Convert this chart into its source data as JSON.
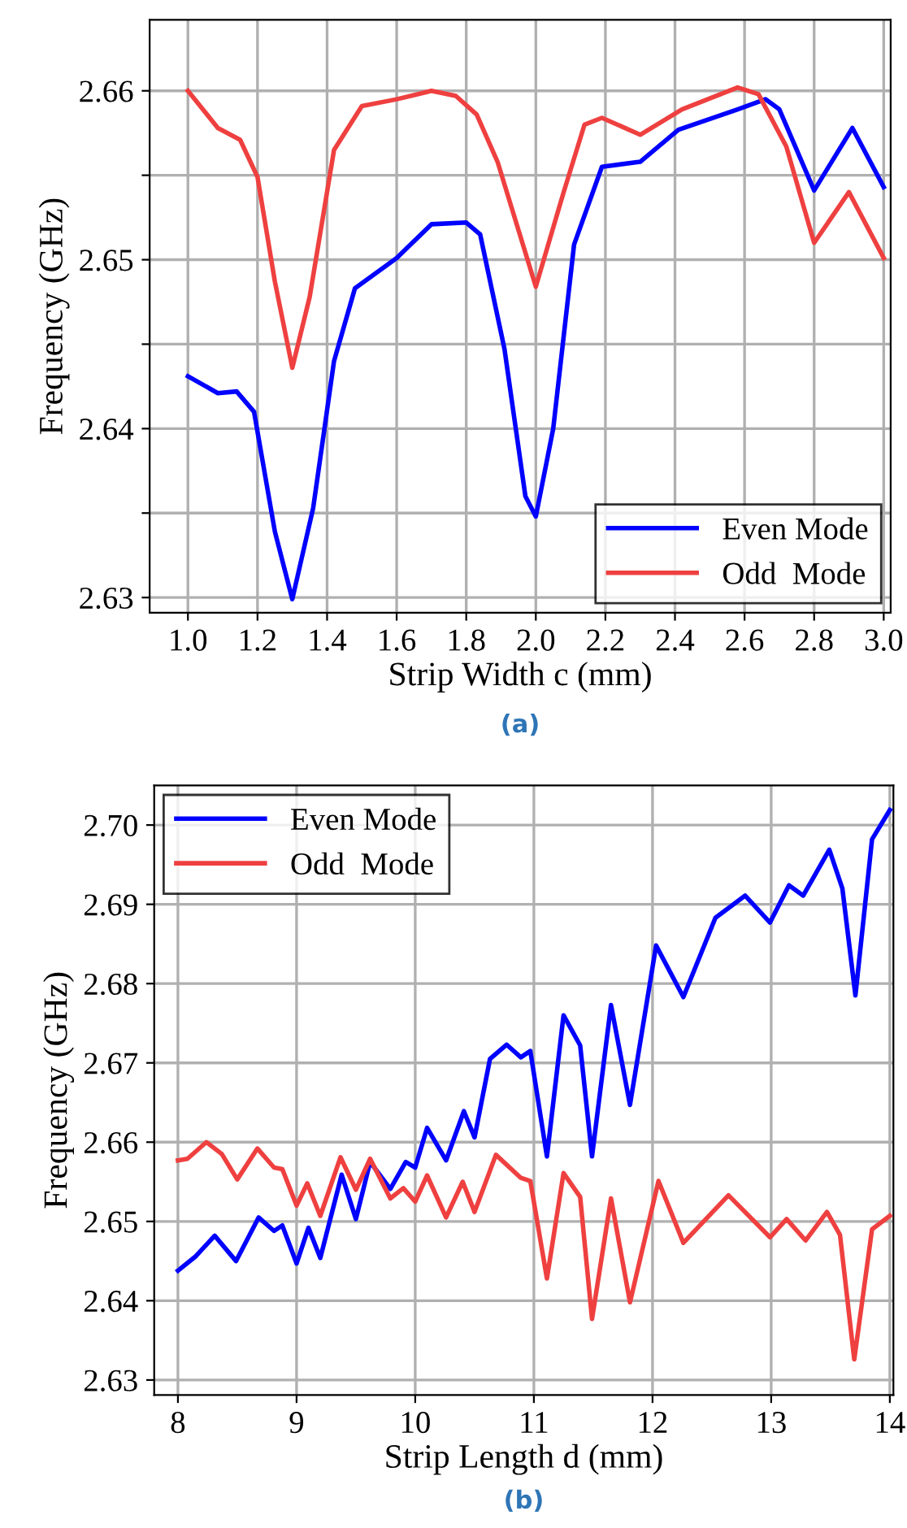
{
  "chart_data": [
    {
      "type": "line",
      "xlabel": "Strip Width c (mm)",
      "ylabel": "Frequency (GHz)",
      "annotations": [
        "(a)"
      ],
      "xlim": [
        0.89,
        3.02
      ],
      "ylim": [
        2.6291,
        2.6642
      ],
      "xticks": [
        {
          "value": 1.0,
          "label": "1.0"
        },
        1.2,
        1.4,
        1.6,
        1.8,
        {
          "value": 2.0,
          "label": "2.0"
        },
        2.2,
        2.4,
        2.6,
        2.8,
        {
          "value": 3.0,
          "label": "3.0"
        }
      ],
      "yticks": [
        2.63,
        {
          "value": 2.635,
          "label": null
        },
        2.64,
        {
          "value": 2.645,
          "label": null
        },
        2.65,
        {
          "value": 2.655,
          "label": null
        },
        2.66
      ],
      "grid": true,
      "legend": "bottom right",
      "line_style": "solid",
      "marker": "none",
      "series": [
        {
          "name": "Even Mode",
          "color": "#0000ff",
          "x": [
            1.0,
            1.086,
            1.14,
            1.19,
            1.25,
            1.3,
            1.36,
            1.42,
            1.48,
            1.6,
            1.7,
            1.8,
            1.84,
            1.91,
            1.97,
            2.0,
            2.05,
            2.11,
            2.19,
            2.3,
            2.41,
            2.58,
            2.66,
            2.7,
            2.8,
            2.91,
            3.0
          ],
          "values": [
            2.6431,
            2.6421,
            2.6422,
            2.641,
            2.6339,
            2.6299,
            2.6353,
            2.644,
            2.6483,
            2.6501,
            2.6521,
            2.6522,
            2.6515,
            2.6447,
            2.636,
            2.6348,
            2.64,
            2.6509,
            2.6555,
            2.6558,
            2.6577,
            2.6589,
            2.6595,
            2.6589,
            2.6541,
            2.6578,
            2.6543
          ]
        },
        {
          "name": "Odd  Mode",
          "color": "#ef4040",
          "x": [
            1.0,
            1.086,
            1.15,
            1.2,
            1.25,
            1.3,
            1.35,
            1.42,
            1.5,
            1.6,
            1.7,
            1.77,
            1.83,
            1.89,
            2.0,
            2.08,
            2.14,
            2.19,
            2.3,
            2.42,
            2.58,
            2.64,
            2.72,
            2.8,
            2.9,
            3.0
          ],
          "values": [
            2.66,
            2.6578,
            2.6571,
            2.6549,
            2.6487,
            2.6436,
            2.6478,
            2.6565,
            2.6591,
            2.6595,
            2.66,
            2.6597,
            2.6586,
            2.6558,
            2.6484,
            2.654,
            2.658,
            2.6584,
            2.6574,
            2.6589,
            2.6602,
            2.6598,
            2.6567,
            2.651,
            2.654,
            2.6501
          ]
        }
      ]
    },
    {
      "type": "line",
      "xlabel": "Strip Length d (mm)",
      "ylabel": "Frequency (GHz)",
      "annotations": [
        "(b)"
      ],
      "xlim": [
        7.8,
        14.03
      ],
      "ylim": [
        2.6281,
        2.705
      ],
      "xticks": [
        8,
        9,
        10,
        11,
        12,
        13,
        14
      ],
      "yticks": [
        {
          "value": 2.63,
          "label": "2.63"
        },
        {
          "value": 2.64,
          "label": "2.64"
        },
        {
          "value": 2.65,
          "label": "2.65"
        },
        {
          "value": 2.66,
          "label": "2.66"
        },
        {
          "value": 2.67,
          "label": "2.67"
        },
        {
          "value": 2.68,
          "label": "2.68"
        },
        {
          "value": 2.69,
          "label": "2.69"
        },
        {
          "value": 2.7,
          "label": "2.70"
        }
      ],
      "grid": true,
      "legend": "top left",
      "line_style": "solid",
      "marker": "none",
      "series": [
        {
          "name": "Even Mode",
          "color": "#0000ff",
          "x": [
            8.0,
            8.15,
            8.31,
            8.49,
            8.68,
            8.81,
            8.88,
            9.0,
            9.1,
            9.2,
            9.38,
            9.5,
            9.62,
            9.79,
            9.92,
            10.0,
            10.1,
            10.26,
            10.41,
            10.5,
            10.63,
            10.77,
            10.89,
            10.97,
            11.11,
            11.25,
            11.39,
            11.49,
            11.65,
            11.81,
            12.03,
            12.26,
            12.53,
            12.78,
            12.99,
            13.15,
            13.27,
            13.49,
            13.6,
            13.71,
            13.85,
            14.0
          ],
          "values": [
            2.6438,
            2.6456,
            2.6482,
            2.645,
            2.6505,
            2.6488,
            2.6495,
            2.6447,
            2.6492,
            2.6454,
            2.6559,
            2.6503,
            2.6575,
            2.6541,
            2.6575,
            2.6568,
            2.6618,
            2.6577,
            2.6639,
            2.6606,
            2.6705,
            2.6723,
            2.6707,
            2.6715,
            2.6582,
            2.676,
            2.6722,
            2.6582,
            2.6773,
            2.6647,
            2.6848,
            2.6783,
            2.6883,
            2.6911,
            2.6877,
            2.6924,
            2.6911,
            2.6969,
            2.692,
            2.6785,
            2.6982,
            2.7019
          ]
        },
        {
          "name": "Odd  Mode",
          "color": "#ef4040",
          "x": [
            8.0,
            8.08,
            8.24,
            8.37,
            8.5,
            8.67,
            8.81,
            8.88,
            9.0,
            9.09,
            9.2,
            9.37,
            9.5,
            9.62,
            9.79,
            9.9,
            10.0,
            10.1,
            10.26,
            10.4,
            10.5,
            10.68,
            10.89,
            10.97,
            11.11,
            11.25,
            11.39,
            11.49,
            11.65,
            11.81,
            12.05,
            12.26,
            12.64,
            12.99,
            13.13,
            13.29,
            13.47,
            13.58,
            13.7,
            13.85,
            14.0
          ],
          "values": [
            2.6577,
            2.6579,
            2.66,
            2.6585,
            2.6553,
            2.6592,
            2.6568,
            2.6566,
            2.652,
            2.6548,
            2.6507,
            2.6581,
            2.654,
            2.6579,
            2.6529,
            2.6542,
            2.6525,
            2.6558,
            2.6505,
            2.655,
            2.6512,
            2.6584,
            2.6555,
            2.6551,
            2.6428,
            2.6561,
            2.6531,
            2.6377,
            2.6529,
            2.6398,
            2.6551,
            2.6473,
            2.6533,
            2.648,
            2.6503,
            2.6476,
            2.6512,
            2.6483,
            2.6326,
            2.649,
            2.6507
          ]
        }
      ]
    }
  ]
}
